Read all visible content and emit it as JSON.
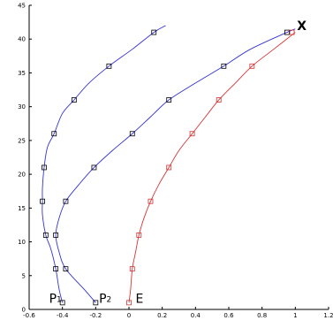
{
  "chart_data": {
    "type": "line",
    "title": "",
    "xlabel": "",
    "ylabel": "",
    "xlim": [
      -0.6,
      1.2
    ],
    "ylim": [
      0,
      45
    ],
    "xticks": [
      "-0.6",
      "-0.4",
      "-0.2",
      "0",
      "0.2",
      "0.4",
      "0.6",
      "0.8",
      "1",
      "1.2"
    ],
    "yticks": [
      "0",
      "5",
      "10",
      "15",
      "20",
      "25",
      "30",
      "35",
      "40",
      "45"
    ],
    "grid": false,
    "series": [
      {
        "color": "#3333dd",
        "marker_color": "#000000",
        "curve": [
          [
            -0.4,
            1
          ],
          [
            -0.42,
            3
          ],
          [
            -0.44,
            6
          ],
          [
            -0.47,
            9
          ],
          [
            -0.5,
            11
          ],
          [
            -0.52,
            14
          ],
          [
            -0.52,
            16
          ],
          [
            -0.52,
            18
          ],
          [
            -0.51,
            21
          ],
          [
            -0.49,
            24
          ],
          [
            -0.45,
            26
          ],
          [
            -0.4,
            29
          ],
          [
            -0.33,
            31
          ],
          [
            -0.24,
            33.5
          ],
          [
            -0.12,
            36
          ],
          [
            0.02,
            38.5
          ],
          [
            0.15,
            41
          ],
          [
            0.22,
            42
          ]
        ],
        "markers": [
          [
            -0.4,
            1
          ],
          [
            -0.44,
            6
          ],
          [
            -0.5,
            11
          ],
          [
            -0.52,
            16
          ],
          [
            -0.51,
            21
          ],
          [
            -0.45,
            26
          ],
          [
            -0.33,
            31
          ],
          [
            -0.12,
            36
          ],
          [
            0.15,
            41
          ]
        ]
      },
      {
        "color": "#3333dd",
        "marker_color": "#000000",
        "curve": [
          [
            -0.2,
            1
          ],
          [
            -0.27,
            3
          ],
          [
            -0.38,
            6
          ],
          [
            -0.42,
            8.5
          ],
          [
            -0.44,
            11
          ],
          [
            -0.42,
            13.5
          ],
          [
            -0.38,
            16
          ],
          [
            -0.3,
            18.5
          ],
          [
            -0.21,
            21
          ],
          [
            -0.1,
            23.5
          ],
          [
            0.02,
            26
          ],
          [
            0.13,
            28.5
          ],
          [
            0.24,
            31
          ],
          [
            0.4,
            33.5
          ],
          [
            0.57,
            36
          ],
          [
            0.73,
            38.5
          ],
          [
            0.95,
            41
          ],
          [
            1.0,
            41.5
          ]
        ],
        "markers": [
          [
            -0.2,
            1
          ],
          [
            -0.38,
            6
          ],
          [
            -0.44,
            11
          ],
          [
            -0.38,
            16
          ],
          [
            -0.21,
            21
          ],
          [
            0.02,
            26
          ],
          [
            0.24,
            31
          ],
          [
            0.57,
            36
          ],
          [
            0.95,
            41
          ]
        ]
      },
      {
        "color": "#dd3333",
        "marker_color": "#cc3333",
        "curve": [
          [
            0.0,
            1
          ],
          [
            0.01,
            3
          ],
          [
            0.02,
            6
          ],
          [
            0.04,
            8.5
          ],
          [
            0.06,
            11
          ],
          [
            0.09,
            13.5
          ],
          [
            0.13,
            16
          ],
          [
            0.18,
            18.5
          ],
          [
            0.24,
            21
          ],
          [
            0.3,
            23.5
          ],
          [
            0.38,
            26
          ],
          [
            0.46,
            28.5
          ],
          [
            0.54,
            31
          ],
          [
            0.64,
            33.5
          ],
          [
            0.74,
            36
          ],
          [
            0.87,
            38.5
          ],
          [
            1.0,
            41
          ]
        ],
        "markers": [
          [
            0.0,
            1
          ],
          [
            0.02,
            6
          ],
          [
            0.06,
            11
          ],
          [
            0.13,
            16
          ],
          [
            0.24,
            21
          ],
          [
            0.38,
            26
          ],
          [
            0.54,
            31
          ],
          [
            0.74,
            36
          ],
          [
            0.98,
            41
          ]
        ]
      }
    ],
    "annotations": [
      {
        "text": "P",
        "sub": "1",
        "x": -0.48,
        "y": 1
      },
      {
        "text": "P",
        "sub": "2",
        "x": -0.18,
        "y": 1
      },
      {
        "text": "E",
        "x": 0.04,
        "y": 1
      },
      {
        "text": "X",
        "x": 1.01,
        "y": 42
      }
    ]
  }
}
